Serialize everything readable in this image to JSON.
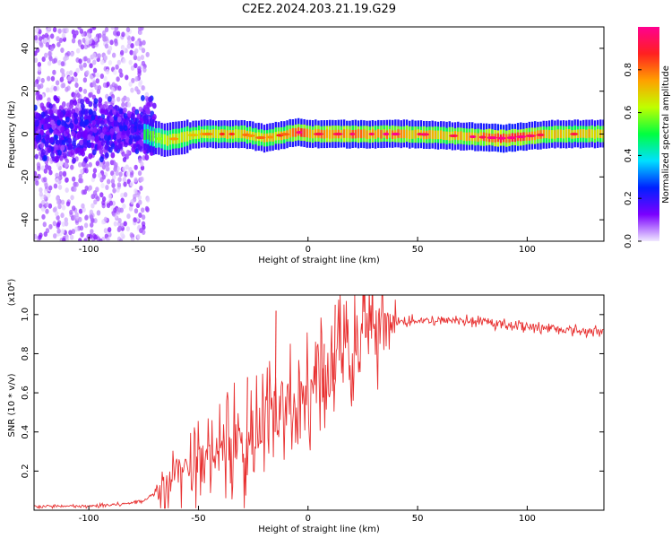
{
  "title": "C2E2.2024.203.21.19.G29",
  "chart_data": [
    {
      "type": "heatmap",
      "xlabel": "Height of straight line (km)",
      "ylabel": "Frequency (Hz)",
      "xlim": [
        -125,
        135
      ],
      "ylim": [
        -50,
        50
      ],
      "xticks": [
        -100,
        -50,
        0,
        50,
        100
      ],
      "yticks": [
        -40,
        -20,
        0,
        20,
        40
      ],
      "colorbar": {
        "label": "Normalized spectral amplitude",
        "range": [
          0,
          1
        ],
        "ticks": [
          "0.0",
          "0.2",
          "0.4",
          "0.6",
          "0.8"
        ],
        "colors": [
          "#f0e8ff",
          "#7a00ff",
          "#0020ff",
          "#00e0ff",
          "#00ff40",
          "#c0ff00",
          "#ffa000",
          "#ff2020",
          "#ff0090"
        ]
      },
      "ridge": {
        "x": [
          -125,
          -100,
          -75,
          -65,
          -50,
          -40,
          -30,
          -25,
          -20,
          -10,
          -5,
          0,
          10,
          30,
          50,
          70,
          90,
          110,
          135
        ],
        "freq": [
          2,
          2,
          0,
          -3,
          0,
          0,
          0,
          -1,
          -2,
          0,
          1,
          0,
          0,
          0,
          0,
          -1,
          -2,
          0,
          0
        ],
        "amplitude": [
          0.12,
          0.1,
          0.2,
          0.45,
          0.5,
          0.55,
          0.6,
          0.55,
          0.55,
          0.6,
          0.85,
          0.7,
          0.75,
          0.7,
          0.65,
          0.6,
          0.9,
          0.6,
          0.6
        ]
      }
    },
    {
      "type": "line",
      "xlabel": "Height of straight line (km)",
      "ylabel": "SNR (10 * v/v)",
      "y_exponent": "(x10⁴)",
      "xlim": [
        -125,
        135
      ],
      "ylim": [
        0,
        1.1
      ],
      "xticks": [
        -100,
        -50,
        0,
        50,
        100
      ],
      "yticks": [
        0.2,
        0.4,
        0.6,
        0.8,
        1.0
      ],
      "color": "#e83030",
      "series": [
        {
          "x": [
            -125,
            -100,
            -85,
            -75,
            -68,
            -62,
            -58,
            -55,
            -50,
            -45,
            -40,
            -35,
            -30,
            -25,
            -20,
            -17,
            -15,
            -10,
            -5,
            0,
            5,
            10,
            13,
            15,
            20,
            25,
            30,
            35,
            40,
            50,
            60,
            70,
            80,
            90,
            100,
            110,
            120,
            135
          ],
          "values": [
            0.02,
            0.02,
            0.03,
            0.05,
            0.1,
            0.2,
            0.25,
            0.22,
            0.3,
            0.28,
            0.32,
            0.35,
            0.38,
            0.4,
            0.45,
            0.55,
            0.5,
            0.55,
            0.6,
            0.62,
            0.66,
            0.7,
            0.8,
            0.82,
            0.85,
            0.9,
            0.93,
            0.95,
            0.96,
            0.97,
            0.97,
            0.97,
            0.96,
            0.95,
            0.94,
            0.93,
            0.92,
            0.91
          ]
        }
      ],
      "peaks": [
        {
          "x": -15,
          "y": 1.02
        },
        {
          "x": 12,
          "y": 1.05
        },
        {
          "x": -28,
          "y": 0.68
        },
        {
          "x": 7,
          "y": 0.85
        }
      ]
    }
  ]
}
